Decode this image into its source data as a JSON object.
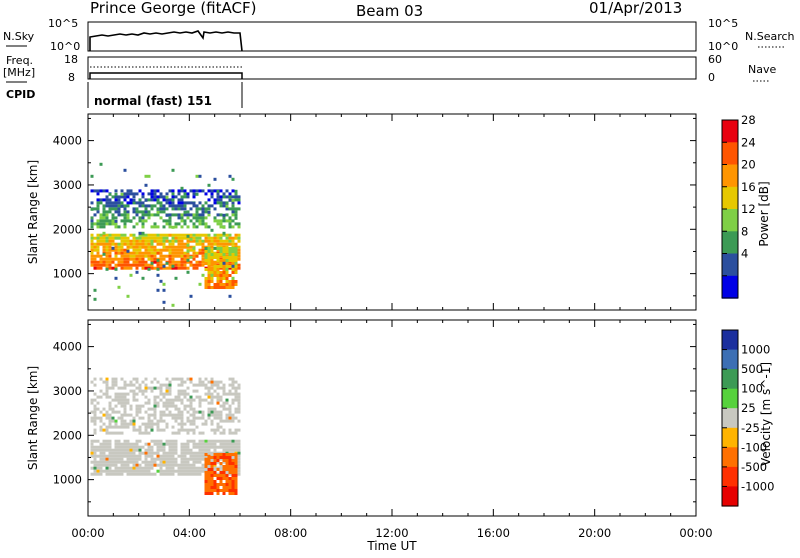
{
  "header": {
    "station": "Prince George (fitACF)",
    "beam": "Beam 03",
    "date": "01/Apr/2013"
  },
  "labels": {
    "nsky": "N.Sky",
    "freq_line1": "Freq.",
    "freq_line2": "[MHz]",
    "cpid": "CPID",
    "nsearch": "N.Search",
    "nave": "Nave",
    "cpid_value": "normal (fast) 151",
    "nsky_ticks": [
      "10^5",
      "10^0"
    ],
    "nsearch_ticks": [
      "10^5",
      "10^0"
    ],
    "freq_ticks": [
      "18",
      "8"
    ],
    "nave_ticks": [
      "60",
      "0"
    ]
  },
  "chart_data": [
    {
      "type": "heatmap",
      "title": "",
      "xlabel": "",
      "ylabel": "Slant Range [km]",
      "x_ticks": [
        "00:00",
        "04:00",
        "08:00",
        "12:00",
        "16:00",
        "20:00",
        "00:00"
      ],
      "y_ticks": [
        1000,
        2000,
        3000,
        4000
      ],
      "xlim_hours": [
        0,
        24
      ],
      "ylim_km": [
        180,
        4600
      ],
      "colorbar": {
        "label": "Power [dB]",
        "ticks": [
          "28",
          "24",
          "20",
          "16",
          "12",
          "8",
          "4"
        ],
        "colors": [
          "#e8000f",
          "#ff5500",
          "#ff9500",
          "#e6c800",
          "#7fd046",
          "#3c9a55",
          "#2b4f9e",
          "#0000e6"
        ]
      },
      "features": [
        {
          "name": "main echo band",
          "t_start": 0.1,
          "t_end": 6.0,
          "range_start_km": 1150,
          "range_end_km": 1900,
          "level_db": 26
        },
        {
          "name": "upper band",
          "t_start": 0.1,
          "t_end": 6.0,
          "range_start_km": 2050,
          "range_end_km": 2900,
          "level_db": 12
        },
        {
          "name": "late echo",
          "t_start": 4.6,
          "t_end": 5.9,
          "range_start_km": 700,
          "range_end_km": 1600,
          "level_db": 24
        },
        {
          "name": "scatter",
          "t_start": 0.1,
          "t_end": 6.0,
          "range_start_km": 300,
          "range_end_km": 3500,
          "level_db": 6
        }
      ]
    },
    {
      "type": "heatmap",
      "title": "",
      "xlabel": "Time UT",
      "ylabel": "Slant Range [km]",
      "x_ticks": [
        "00:00",
        "04:00",
        "08:00",
        "12:00",
        "16:00",
        "20:00",
        "00:00"
      ],
      "y_ticks": [
        1000,
        2000,
        3000,
        4000
      ],
      "xlim_hours": [
        0,
        24
      ],
      "ylim_km": [
        180,
        4600
      ],
      "colorbar": {
        "label": "Velocity [m s^-1]",
        "ticks": [
          "1000",
          "500",
          "100",
          "25",
          "-25",
          "-100",
          "-500",
          "-1000"
        ],
        "colors": [
          "#1b2f9e",
          "#3c6fb4",
          "#3c9a55",
          "#56d23c",
          "#c8c8c0",
          "#ffb400",
          "#ff7000",
          "#ff3000",
          "#e60000"
        ]
      },
      "features": [
        {
          "name": "ground scatter band",
          "t_start": 0.1,
          "t_end": 6.0,
          "range_start_km": 1150,
          "range_end_km": 1900,
          "velocity": 0
        },
        {
          "name": "upper ground scatter",
          "t_start": 0.1,
          "t_end": 6.0,
          "range_start_km": 2050,
          "range_end_km": 3300,
          "velocity": 0
        },
        {
          "name": "late echo",
          "t_start": 4.6,
          "t_end": 5.9,
          "range_start_km": 700,
          "range_end_km": 1600,
          "velocity": -400
        }
      ]
    }
  ]
}
